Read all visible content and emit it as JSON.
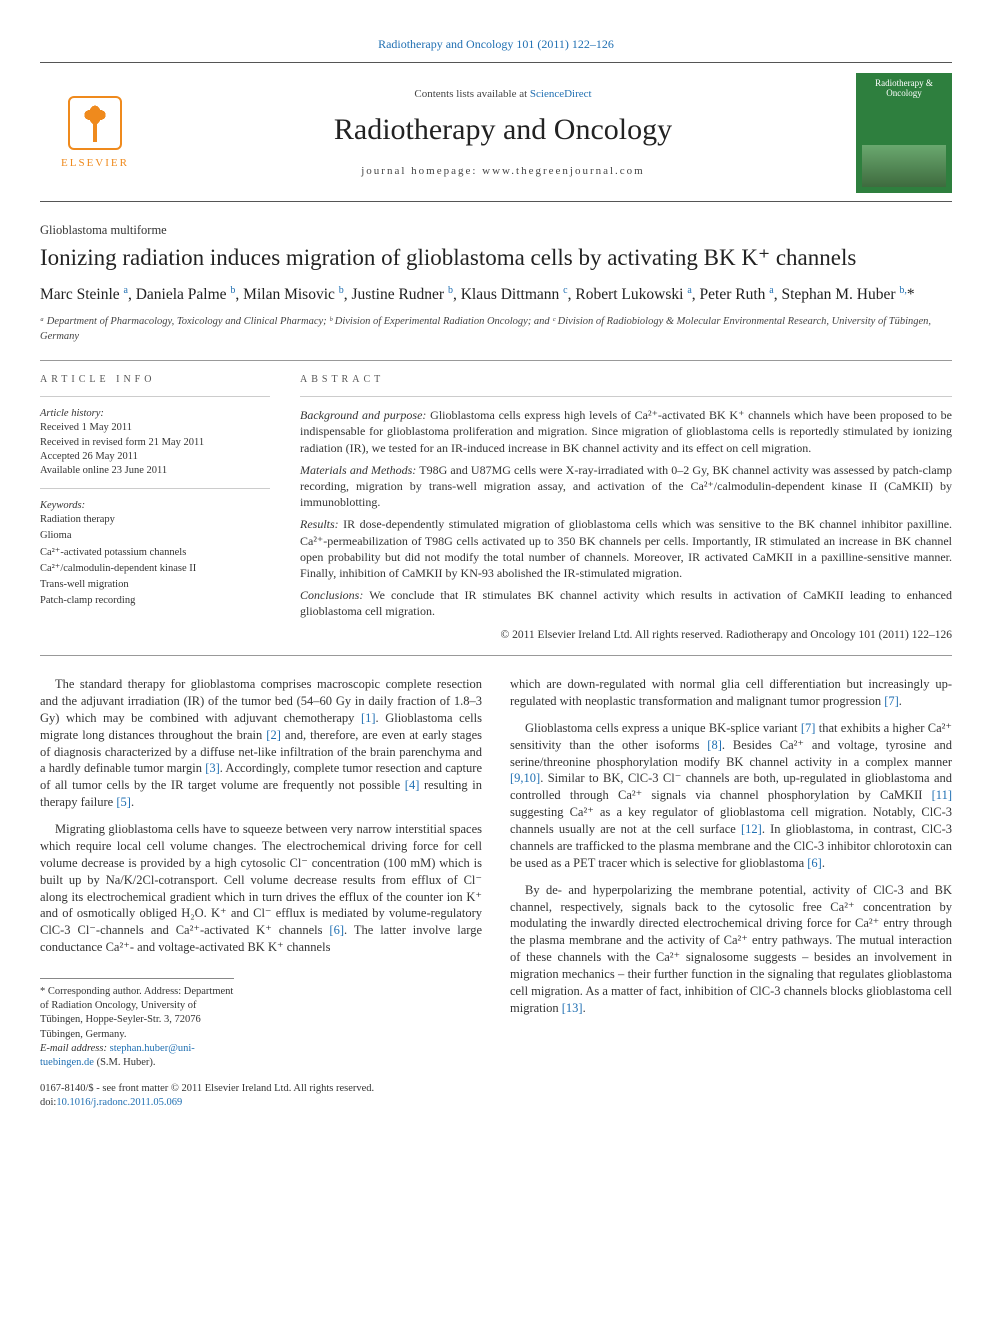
{
  "colors": {
    "link": "#1f6fb2",
    "text": "#333333",
    "rule": "#999999",
    "elsevier": "#ef8a1d",
    "cover": "#2e7f3e",
    "background": "#ffffff"
  },
  "typography": {
    "body_family": "Times New Roman, serif",
    "body_size_pt": 9.5,
    "title_size_pt": 17,
    "journal_title_size_pt": 22,
    "authors_size_pt": 11.5
  },
  "masthead": {
    "journal_ref": "Radiotherapy and Oncology 101 (2011) 122–126",
    "contents_line_pre": "Contents lists available at ",
    "contents_link": "ScienceDirect",
    "journal_title": "Radiotherapy and Oncology",
    "homepage_pre": "journal homepage: ",
    "homepage": "www.thegreenjournal.com",
    "publisher_logo_text": "ELSEVIER",
    "cover_title": "Radiotherapy & Oncology"
  },
  "article": {
    "section_label": "Glioblastoma multiforme",
    "title": "Ionizing radiation induces migration of glioblastoma cells by activating BK K⁺ channels",
    "authors_html": "Marc Steinle <sup>a</sup>, Daniela Palme <sup>b</sup>, Milan Misovic <sup>b</sup>, Justine Rudner <sup>b</sup>, Klaus Dittmann <sup>c</sup>, Robert Lukowski <sup>a</sup>, Peter Ruth <sup>a</sup>, Stephan M. Huber <sup>b,</sup>*",
    "affiliations": "ᵃ Department of Pharmacology, Toxicology and Clinical Pharmacy; ᵇ Division of Experimental Radiation Oncology; and ᶜ Division of Radiobiology & Molecular Environmental Research, University of Tübingen, Germany"
  },
  "info": {
    "heading_left": "article info",
    "heading_right": "abstract",
    "history": {
      "label": "Article history:",
      "received": "Received 1 May 2011",
      "revised": "Received in revised form 21 May 2011",
      "accepted": "Accepted 26 May 2011",
      "online": "Available online 23 June 2011"
    },
    "keywords_label": "Keywords:",
    "keywords": [
      "Radiation therapy",
      "Glioma",
      "Ca²⁺-activated potassium channels",
      "Ca²⁺/calmodulin-dependent kinase II",
      "Trans-well migration",
      "Patch-clamp recording"
    ]
  },
  "abstract": {
    "bp_head": "Background and purpose:",
    "bp": "Glioblastoma cells express high levels of Ca²⁺-activated BK K⁺ channels which have been proposed to be indispensable for glioblastoma proliferation and migration. Since migration of glioblastoma cells is reportedly stimulated by ionizing radiation (IR), we tested for an IR-induced increase in BK channel activity and its effect on cell migration.",
    "mm_head": "Materials and Methods:",
    "mm": "T98G and U87MG cells were X-ray-irradiated with 0–2 Gy, BK channel activity was assessed by patch-clamp recording, migration by trans-well migration assay, and activation of the Ca²⁺/calmodulin-dependent kinase II (CaMKII) by immunoblotting.",
    "res_head": "Results:",
    "res": "IR dose-dependently stimulated migration of glioblastoma cells which was sensitive to the BK channel inhibitor paxilline. Ca²⁺-permeabilization of T98G cells activated up to 350 BK channels per cells. Importantly, IR stimulated an increase in BK channel open probability but did not modify the total number of channels. Moreover, IR activated CaMKII in a paxilline-sensitive manner. Finally, inhibition of CaMKII by KN-93 abolished the IR-stimulated migration.",
    "con_head": "Conclusions:",
    "con": "We conclude that IR stimulates BK channel activity which results in activation of CaMKII leading to enhanced glioblastoma cell migration.",
    "copyright": "© 2011 Elsevier Ireland Ltd. All rights reserved. Radiotherapy and Oncology 101 (2011) 122–126"
  },
  "body": {
    "p1": "The standard therapy for glioblastoma comprises macroscopic complete resection and the adjuvant irradiation (IR) of the tumor bed (54–60 Gy in daily fraction of 1.8–3 Gy) which may be combined with adjuvant chemotherapy [1]. Glioblastoma cells migrate long distances throughout the brain [2] and, therefore, are even at early stages of diagnosis characterized by a diffuse net-like infiltration of the brain parenchyma and a hardly definable tumor margin [3]. Accordingly, complete tumor resection and capture of all tumor cells by the IR target volume are frequently not possible [4] resulting in therapy failure [5].",
    "p2": "Migrating glioblastoma cells have to squeeze between very narrow interstitial spaces which require local cell volume changes. The electrochemical driving force for cell volume decrease is provided by a high cytosolic Cl⁻ concentration (100 mM) which is built up by Na/K/2Cl-cotransport. Cell volume decrease results from efflux of Cl⁻ along its electrochemical gradient which in turn drives the efflux of the counter ion K⁺ and of osmotically obliged H₂O. K⁺ and Cl⁻ efflux is mediated by volume-regulatory ClC-3 Cl⁻-channels and Ca²⁺-activated K⁺ channels [6]. The latter involve large conductance Ca²⁺- and voltage-activated BK K⁺ channels",
    "p3": "which are down-regulated with normal glia cell differentiation but increasingly up-regulated with neoplastic transformation and malignant tumor progression [7].",
    "p4": "Glioblastoma cells express a unique BK-splice variant [7] that exhibits a higher Ca²⁺ sensitivity than the other isoforms [8]. Besides Ca²⁺ and voltage, tyrosine and serine/threonine phosphorylation modify BK channel activity in a complex manner [9,10]. Similar to BK, ClC-3 Cl⁻ channels are both, up-regulated in glioblastoma and controlled through Ca²⁺ signals via channel phosphorylation by CaMKII [11] suggesting Ca²⁺ as a key regulator of glioblastoma cell migration. Notably, ClC-3 channels usually are not at the cell surface [12]. In glioblastoma, in contrast, ClC-3 channels are trafficked to the plasma membrane and the ClC-3 inhibitor chlorotoxin can be used as a PET tracer which is selective for glioblastoma [6].",
    "p5": "By de- and hyperpolarizing the membrane potential, activity of ClC-3 and BK channel, respectively, signals back to the cytosolic free Ca²⁺ concentration by modulating the inwardly directed electrochemical driving force for Ca²⁺ entry through the plasma membrane and the activity of Ca²⁺ entry pathways. The mutual interaction of these channels with the Ca²⁺ signalosome suggests – besides an involvement in migration mechanics – their further function in the signaling that regulates glioblastoma cell migration. As a matter of fact, inhibition of ClC-3 channels blocks glioblastoma cell migration [13]."
  },
  "footnotes": {
    "corr_label": "* Corresponding author.",
    "corr_addr": " Address: Department of Radiation Oncology, University of Tübingen, Hoppe-Seyler-Str. 3, 72076 Tübingen, Germany.",
    "email_label": "E-mail address:",
    "email": "stephan.huber@uni-tuebingen.de",
    "email_suffix": "(S.M. Huber)."
  },
  "doi": {
    "front_matter": "0167-8140/$ - see front matter © 2011 Elsevier Ireland Ltd. All rights reserved.",
    "doi_label": "doi:",
    "doi": "10.1016/j.radonc.2011.05.069"
  }
}
